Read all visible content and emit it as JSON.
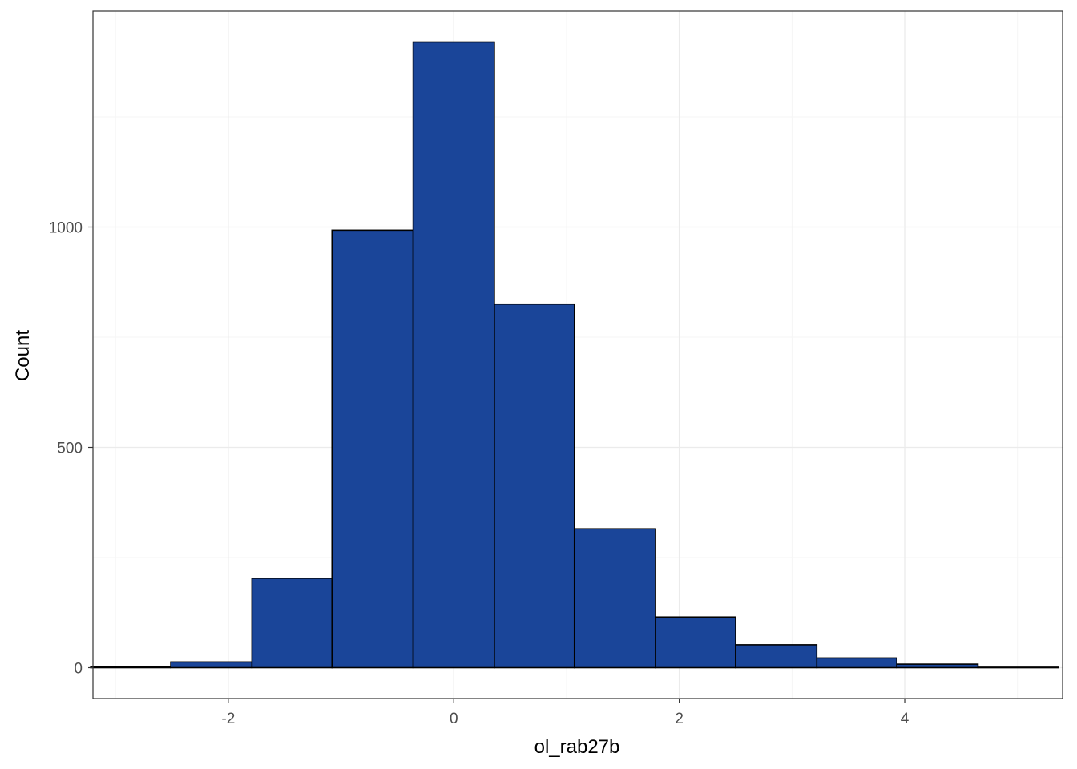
{
  "chart_data": {
    "type": "bar",
    "subtype": "histogram",
    "title": "",
    "xlabel": "ol_rab27b",
    "ylabel": "Count",
    "xlim": [
      -3.2,
      5.4
    ],
    "ylim": [
      -70,
      1490
    ],
    "x_ticks": [
      -2,
      0,
      2,
      4
    ],
    "x_tick_labels": [
      "-2",
      "0",
      "2",
      "4"
    ],
    "y_ticks": [
      0,
      500,
      1000
    ],
    "y_tick_labels": [
      "0",
      "500",
      "1000"
    ],
    "grid": true,
    "bins": [
      {
        "x0": -3.22,
        "x1": -2.51,
        "count": 2
      },
      {
        "x0": -2.51,
        "x1": -1.79,
        "count": 13
      },
      {
        "x0": -1.79,
        "x1": -1.08,
        "count": 203
      },
      {
        "x0": -1.08,
        "x1": -0.36,
        "count": 993
      },
      {
        "x0": -0.36,
        "x1": 0.36,
        "count": 1420
      },
      {
        "x0": 0.36,
        "x1": 1.07,
        "count": 825
      },
      {
        "x0": 1.07,
        "x1": 1.79,
        "count": 315
      },
      {
        "x0": 1.79,
        "x1": 2.5,
        "count": 115
      },
      {
        "x0": 2.5,
        "x1": 3.22,
        "count": 52
      },
      {
        "x0": 3.22,
        "x1": 3.93,
        "count": 22
      },
      {
        "x0": 3.93,
        "x1": 4.65,
        "count": 8
      },
      {
        "x0": 4.65,
        "x1": 5.36,
        "count": 1
      }
    ],
    "colors": {
      "fill": "#1a4599",
      "outline": "#000000",
      "grid_major": "#ebebeb",
      "grid_minor": "#f5f5f5",
      "panel_border": "#333333"
    }
  }
}
